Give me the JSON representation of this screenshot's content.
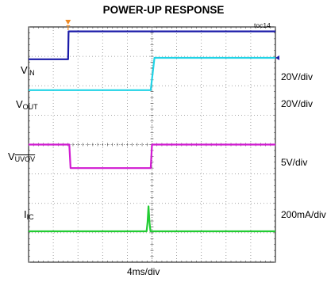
{
  "chart_data": {
    "type": "line",
    "title": "POWER-UP RESPONSE",
    "figure_id": "toc14",
    "x_scale": "4ms/div",
    "divisions": {
      "x": 10,
      "y": 8
    },
    "trigger_marker": "T",
    "colors": {
      "vin": "#1a1aa8",
      "vout": "#22d3e6",
      "vuvov": "#d11ad1",
      "ic": "#22cc33",
      "trigger": "#f08a24"
    },
    "series": [
      {
        "key": "vin",
        "label_main": "V",
        "label_sub": "IN",
        "label_sub_overline": false,
        "scale": "20V/div",
        "points": [
          [
            0,
            6.9
          ],
          [
            1.6,
            6.9
          ],
          [
            1.62,
            7.85
          ],
          [
            10,
            7.85
          ]
        ]
      },
      {
        "key": "vout",
        "label_main": "V",
        "label_sub": "OUT",
        "label_sub_overline": false,
        "scale": "20V/div",
        "points": [
          [
            0,
            5.85
          ],
          [
            4.95,
            5.85
          ],
          [
            5.1,
            6.95
          ],
          [
            10,
            6.95
          ]
        ]
      },
      {
        "key": "vuvov",
        "label_main": "V",
        "label_sub": "UVOV",
        "label_sub_overline": true,
        "scale": "5V/div",
        "points": [
          [
            0,
            4.0
          ],
          [
            1.65,
            4.0
          ],
          [
            1.7,
            3.2
          ],
          [
            4.95,
            3.2
          ],
          [
            5.0,
            4.0
          ],
          [
            10,
            4.0
          ]
        ]
      },
      {
        "key": "ic",
        "label_main": "I",
        "label_sub": "IC",
        "label_sub_overline": false,
        "scale": "200mA/div",
        "points": [
          [
            0,
            1.05
          ],
          [
            4.78,
            1.05
          ],
          [
            4.82,
            1.35
          ],
          [
            4.86,
            1.9
          ],
          [
            4.9,
            1.35
          ],
          [
            4.94,
            1.05
          ],
          [
            10,
            1.05
          ]
        ]
      }
    ]
  }
}
